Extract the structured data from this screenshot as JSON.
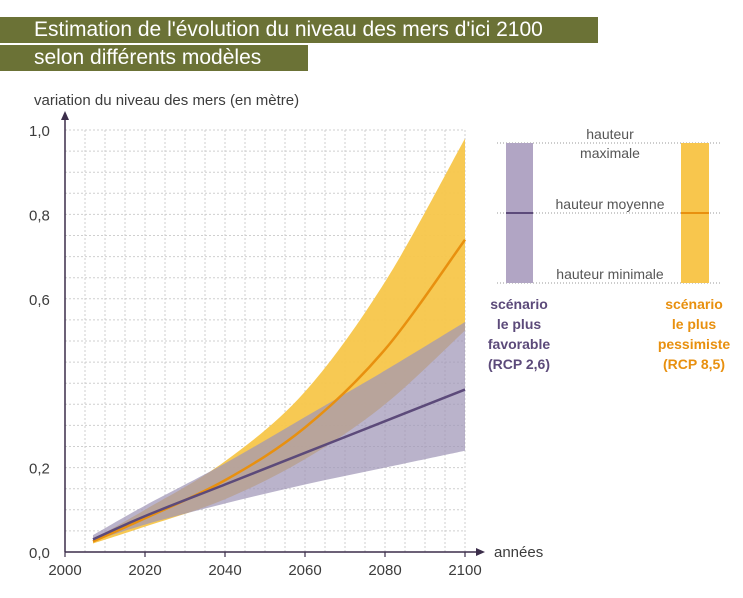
{
  "title": {
    "line1": "Estimation de l'évolution du niveau des mers d'ici 2100",
    "line2": "selon différents modèles"
  },
  "chart_data": {
    "type": "area",
    "ylabel": "variation du niveau des mers (en mètre)",
    "xlabel": "années",
    "xlim": [
      2000,
      2100
    ],
    "ylim": [
      0,
      1.0
    ],
    "x_ticks": [
      "2000",
      "2020",
      "2040",
      "2060",
      "2080",
      "2100"
    ],
    "y_ticks": [
      "0,0",
      "0,2",
      "0,6",
      "0,8",
      "1,0"
    ],
    "grid": true,
    "x": [
      2007,
      2020,
      2040,
      2060,
      2080,
      2100
    ],
    "series": [
      {
        "name": "scénario le plus favorable (RCP 2,6)",
        "color": "#5c4a7a",
        "band_color": "#9f95b7",
        "mean": [
          0.03,
          0.085,
          0.16,
          0.235,
          0.31,
          0.385
        ],
        "min": [
          0.025,
          0.065,
          0.115,
          0.16,
          0.2,
          0.24
        ],
        "max": [
          0.04,
          0.11,
          0.21,
          0.32,
          0.43,
          0.545
        ]
      },
      {
        "name": "scénario le plus pessimiste (RCP 8,5)",
        "color": "#e8900f",
        "band_color": "#f7c64a",
        "mean": [
          0.025,
          0.08,
          0.17,
          0.295,
          0.48,
          0.74
        ],
        "min": [
          0.02,
          0.06,
          0.125,
          0.22,
          0.35,
          0.525
        ],
        "max": [
          0.03,
          0.1,
          0.215,
          0.38,
          0.64,
          0.98
        ]
      }
    ]
  },
  "legend": {
    "labels": [
      "hauteur maximale",
      "hauteur moyenne",
      "hauteur minimale"
    ],
    "favorable": {
      "lines": [
        "scénario",
        "le plus",
        "favorable",
        "(RCP 2,6)"
      ],
      "color": "#5c4a7a",
      "band_color": "#b1a5c4"
    },
    "pessimiste": {
      "lines": [
        "scénario",
        "le plus",
        "pessimiste",
        "(RCP 8,5)"
      ],
      "color": "#e8900f",
      "band_color": "#f8c64d"
    }
  }
}
